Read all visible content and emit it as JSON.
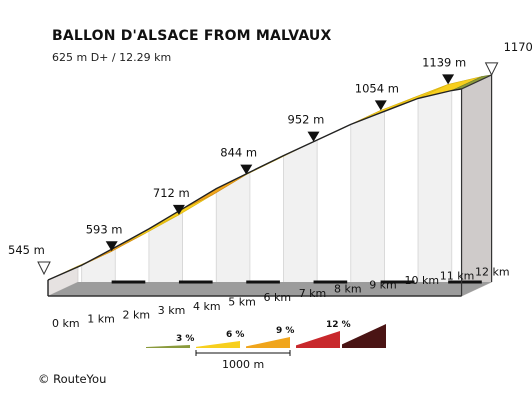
{
  "chart_data": {
    "type": "area",
    "title": "BALLON D'ALSACE FROM MALVAUX",
    "subtitle": "625 m D+ / 12.29 km",
    "x_unit": "km",
    "y_unit": "m",
    "x_ticks": [
      "0 km",
      "1 km",
      "2 km",
      "3 km",
      "4 km",
      "5 km",
      "6 km",
      "7 km",
      "8 km",
      "9 km",
      "10 km",
      "11 km",
      "12 km"
    ],
    "profile": {
      "x": [
        0,
        1,
        2,
        3,
        4,
        5,
        6,
        7,
        8,
        9,
        10,
        11,
        12,
        12.29
      ],
      "y": [
        545,
        593,
        652,
        712,
        778,
        844,
        898,
        952,
        1003,
        1054,
        1097,
        1139,
        1165,
        1170
      ]
    },
    "segment_grade_class": [
      6,
      9,
      6,
      6,
      9,
      6,
      6,
      6,
      9,
      6,
      6,
      6,
      3
    ],
    "annotations": [
      {
        "x": 0,
        "label": "545 m",
        "marker": "start"
      },
      {
        "x": 1,
        "label": "593 m",
        "marker": "point"
      },
      {
        "x": 3,
        "label": "712 m",
        "marker": "point"
      },
      {
        "x": 5,
        "label": "844 m",
        "marker": "point"
      },
      {
        "x": 7,
        "label": "952 m",
        "marker": "point"
      },
      {
        "x": 9,
        "label": "1054 m",
        "marker": "point"
      },
      {
        "x": 11,
        "label": "1139 m",
        "marker": "point"
      },
      {
        "x": 12.29,
        "label": "1170 m",
        "marker": "end"
      }
    ],
    "legend": {
      "items": [
        {
          "label": "3 %",
          "color": "#8a9a3c"
        },
        {
          "label": "6 %",
          "color": "#f7cf1e"
        },
        {
          "label": "9 %",
          "color": "#f0a51c"
        },
        {
          "label": "12 %",
          "color": "#c8282c"
        },
        {
          "label": "",
          "color": "#4a1414"
        }
      ],
      "scale_label": "1000 m"
    }
  },
  "footer": {
    "copyright": "© RouteYou"
  }
}
